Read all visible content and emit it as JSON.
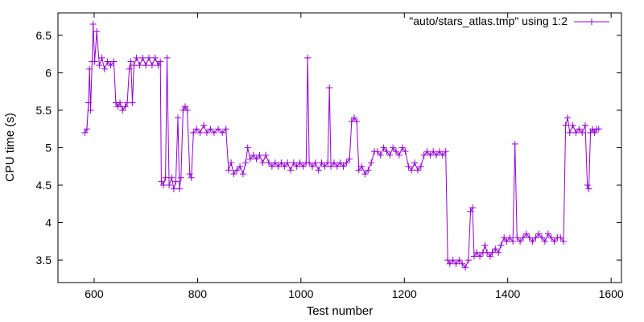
{
  "chart_data": {
    "type": "line",
    "xlabel": "Test number",
    "ylabel": "CPU time (s)",
    "xlim": [
      530,
      1620
    ],
    "ylim": [
      3.2,
      6.8
    ],
    "xticks": [
      600,
      800,
      1000,
      1200,
      1400,
      1600
    ],
    "yticks": [
      3.5,
      4,
      4.5,
      5,
      5.5,
      6,
      6.5
    ],
    "xtick_labels": [
      "600",
      "800",
      "1000",
      "1200",
      "1400",
      "1600"
    ],
    "ytick_labels": [
      "3.5",
      "4",
      "4.5",
      "5",
      "5.5",
      "6",
      "6.5"
    ],
    "grid": false,
    "legend_position": "top-right",
    "series": [
      {
        "name": "\"auto/stars_atlas.tmp\" using 1:2",
        "color": "#9400D3",
        "marker": "plus",
        "points": [
          [
            582,
            5.2
          ],
          [
            586,
            5.25
          ],
          [
            589,
            5.6
          ],
          [
            591,
            6.05
          ],
          [
            593,
            5.5
          ],
          [
            596,
            6.15
          ],
          [
            598,
            6.65
          ],
          [
            601,
            6.15
          ],
          [
            605,
            6.55
          ],
          [
            610,
            6.1
          ],
          [
            615,
            6.2
          ],
          [
            620,
            6.05
          ],
          [
            626,
            6.15
          ],
          [
            632,
            6.1
          ],
          [
            638,
            6.15
          ],
          [
            642,
            5.6
          ],
          [
            646,
            5.55
          ],
          [
            650,
            5.6
          ],
          [
            655,
            5.5
          ],
          [
            660,
            5.55
          ],
          [
            664,
            5.6
          ],
          [
            668,
            6.05
          ],
          [
            671,
            6.15
          ],
          [
            674,
            5.6
          ],
          [
            677,
            6.1
          ],
          [
            682,
            6.2
          ],
          [
            688,
            6.1
          ],
          [
            694,
            6.2
          ],
          [
            700,
            6.1
          ],
          [
            706,
            6.2
          ],
          [
            712,
            6.1
          ],
          [
            718,
            6.2
          ],
          [
            724,
            6.1
          ],
          [
            728,
            6.15
          ],
          [
            730,
            4.55
          ],
          [
            734,
            4.5
          ],
          [
            738,
            4.6
          ],
          [
            741,
            6.2
          ],
          [
            745,
            4.5
          ],
          [
            750,
            4.6
          ],
          [
            754,
            4.45
          ],
          [
            758,
            4.55
          ],
          [
            762,
            5.4
          ],
          [
            765,
            4.45
          ],
          [
            768,
            4.6
          ],
          [
            772,
            5.5
          ],
          [
            776,
            5.55
          ],
          [
            780,
            5.5
          ],
          [
            785,
            4.65
          ],
          [
            788,
            4.6
          ],
          [
            792,
            5.2
          ],
          [
            798,
            5.25
          ],
          [
            805,
            5.2
          ],
          [
            812,
            5.3
          ],
          [
            818,
            5.2
          ],
          [
            825,
            5.25
          ],
          [
            832,
            5.2
          ],
          [
            840,
            5.25
          ],
          [
            848,
            5.2
          ],
          [
            855,
            5.25
          ],
          [
            860,
            4.7
          ],
          [
            865,
            4.8
          ],
          [
            870,
            4.65
          ],
          [
            876,
            4.7
          ],
          [
            882,
            4.75
          ],
          [
            888,
            4.65
          ],
          [
            893,
            4.8
          ],
          [
            897,
            5.0
          ],
          [
            902,
            4.85
          ],
          [
            908,
            4.9
          ],
          [
            914,
            4.85
          ],
          [
            920,
            4.9
          ],
          [
            926,
            4.8
          ],
          [
            932,
            4.9
          ],
          [
            938,
            4.8
          ],
          [
            944,
            4.75
          ],
          [
            950,
            4.8
          ],
          [
            956,
            4.75
          ],
          [
            962,
            4.8
          ],
          [
            968,
            4.75
          ],
          [
            974,
            4.8
          ],
          [
            980,
            4.7
          ],
          [
            986,
            4.8
          ],
          [
            992,
            4.75
          ],
          [
            998,
            4.8
          ],
          [
            1004,
            4.75
          ],
          [
            1010,
            4.8
          ],
          [
            1013,
            6.2
          ],
          [
            1016,
            4.8
          ],
          [
            1022,
            4.75
          ],
          [
            1028,
            4.8
          ],
          [
            1034,
            4.7
          ],
          [
            1040,
            4.8
          ],
          [
            1046,
            4.75
          ],
          [
            1052,
            4.8
          ],
          [
            1055,
            5.8
          ],
          [
            1058,
            4.75
          ],
          [
            1064,
            4.8
          ],
          [
            1070,
            4.75
          ],
          [
            1076,
            4.8
          ],
          [
            1082,
            4.75
          ],
          [
            1088,
            4.8
          ],
          [
            1094,
            4.85
          ],
          [
            1098,
            5.35
          ],
          [
            1103,
            5.4
          ],
          [
            1108,
            5.35
          ],
          [
            1112,
            4.7
          ],
          [
            1118,
            4.75
          ],
          [
            1124,
            4.65
          ],
          [
            1130,
            4.7
          ],
          [
            1136,
            4.8
          ],
          [
            1142,
            4.95
          ],
          [
            1148,
            4.95
          ],
          [
            1154,
            4.9
          ],
          [
            1160,
            5.0
          ],
          [
            1166,
            4.95
          ],
          [
            1172,
            4.9
          ],
          [
            1178,
            5.0
          ],
          [
            1184,
            4.95
          ],
          [
            1190,
            4.9
          ],
          [
            1196,
            5.0
          ],
          [
            1202,
            4.95
          ],
          [
            1208,
            4.75
          ],
          [
            1214,
            4.7
          ],
          [
            1220,
            4.8
          ],
          [
            1226,
            4.7
          ],
          [
            1232,
            4.75
          ],
          [
            1238,
            4.9
          ],
          [
            1244,
            4.95
          ],
          [
            1250,
            4.9
          ],
          [
            1256,
            4.95
          ],
          [
            1262,
            4.9
          ],
          [
            1268,
            4.95
          ],
          [
            1274,
            4.9
          ],
          [
            1280,
            4.95
          ],
          [
            1284,
            3.5
          ],
          [
            1288,
            3.45
          ],
          [
            1294,
            3.5
          ],
          [
            1300,
            3.45
          ],
          [
            1306,
            3.5
          ],
          [
            1312,
            3.45
          ],
          [
            1318,
            3.4
          ],
          [
            1324,
            3.5
          ],
          [
            1328,
            4.15
          ],
          [
            1332,
            4.2
          ],
          [
            1335,
            3.55
          ],
          [
            1340,
            3.6
          ],
          [
            1346,
            3.55
          ],
          [
            1352,
            3.6
          ],
          [
            1356,
            3.7
          ],
          [
            1360,
            3.6
          ],
          [
            1366,
            3.55
          ],
          [
            1370,
            3.6
          ],
          [
            1376,
            3.65
          ],
          [
            1382,
            3.6
          ],
          [
            1387,
            3.7
          ],
          [
            1393,
            3.8
          ],
          [
            1398,
            3.75
          ],
          [
            1404,
            3.8
          ],
          [
            1410,
            3.75
          ],
          [
            1414,
            5.05
          ],
          [
            1418,
            3.8
          ],
          [
            1424,
            3.75
          ],
          [
            1430,
            3.8
          ],
          [
            1436,
            3.85
          ],
          [
            1442,
            3.8
          ],
          [
            1448,
            3.75
          ],
          [
            1454,
            3.8
          ],
          [
            1460,
            3.85
          ],
          [
            1466,
            3.8
          ],
          [
            1472,
            3.75
          ],
          [
            1478,
            3.85
          ],
          [
            1484,
            3.8
          ],
          [
            1490,
            3.75
          ],
          [
            1496,
            3.8
          ],
          [
            1502,
            3.8
          ],
          [
            1508,
            3.75
          ],
          [
            1512,
            5.3
          ],
          [
            1516,
            5.4
          ],
          [
            1520,
            5.2
          ],
          [
            1526,
            5.3
          ],
          [
            1532,
            5.2
          ],
          [
            1538,
            5.25
          ],
          [
            1544,
            5.2
          ],
          [
            1550,
            5.3
          ],
          [
            1554,
            4.5
          ],
          [
            1557,
            4.45
          ],
          [
            1560,
            5.2
          ],
          [
            1564,
            5.25
          ],
          [
            1568,
            5.2
          ],
          [
            1572,
            5.25
          ],
          [
            1576,
            5.25
          ]
        ]
      }
    ]
  }
}
